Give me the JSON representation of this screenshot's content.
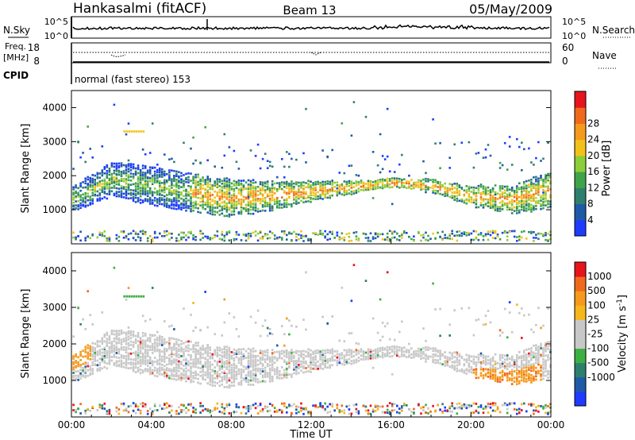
{
  "header": {
    "station": "Hankasalmi (fitACF)",
    "beam": "Beam 13",
    "date": "05/May/2009"
  },
  "noise_panel": {
    "left_label": "N.Sky",
    "left_ticks": [
      "10^5",
      "10^0"
    ],
    "right_label": "N.Search",
    "right_ticks": [
      "10^5",
      "10^0"
    ]
  },
  "freq_panel": {
    "left_label_1": "Freq.",
    "left_label_2": "[MHz]",
    "left_ticks": [
      "18",
      "8"
    ],
    "right_label": "Nave",
    "right_ticks": [
      "60",
      "0"
    ],
    "cpid_label": "CPID",
    "cpid_text": "normal (fast stereo) 153"
  },
  "x_axis": {
    "ticks": [
      "00:00",
      "04:00",
      "08:00",
      "12:00",
      "16:00",
      "20:00",
      "00:00"
    ],
    "label": "Time UT"
  },
  "colors": {
    "power": [
      "#1e3cff",
      "#1f5aa8",
      "#2f7f6e",
      "#3fa34a",
      "#8ccd3a",
      "#f3c21a",
      "#f59a1d",
      "#f06a1c",
      "#e8141c"
    ],
    "velocity": [
      "#e8141c",
      "#f06a1c",
      "#f59a1d",
      "#f5b71c",
      "#c8c8c8",
      "#c8c8c8",
      "#3cb043",
      "#2f7f6e",
      "#1f5aa8",
      "#1e3cff"
    ]
  },
  "chart_data": [
    {
      "type": "heatmap",
      "ylabel": "Slant Range [km]",
      "yticks": [
        "1000",
        "2000",
        "3000",
        "4000"
      ],
      "ylim": [
        0,
        4500
      ],
      "xlim_hours": [
        0,
        24
      ],
      "colorbar_label": "Power [dB]",
      "colorbar_ticks": [
        "4",
        "8",
        "12",
        "16",
        "20",
        "24",
        "28"
      ],
      "colorbar_range": [
        0,
        30
      ],
      "scatter_band_center_km": [
        [
          0,
          1300
        ],
        [
          2,
          1900
        ],
        [
          4,
          1700
        ],
        [
          6,
          1500
        ],
        [
          8,
          1350
        ],
        [
          10,
          1400
        ],
        [
          12,
          1550
        ],
        [
          14,
          1650
        ],
        [
          16,
          1800
        ],
        [
          18,
          1700
        ],
        [
          20,
          1400
        ],
        [
          22,
          1300
        ],
        [
          24,
          1600
        ]
      ]
    },
    {
      "type": "heatmap",
      "ylabel": "Slant Range [km]",
      "yticks": [
        "1000",
        "2000",
        "3000",
        "4000"
      ],
      "ylim": [
        0,
        4500
      ],
      "xlim_hours": [
        0,
        24
      ],
      "colorbar_label": "Velocity [m s^-1]",
      "colorbar_ticks": [
        "1000",
        "500",
        "100",
        "25",
        "-25",
        "-100",
        "-500",
        "-1000"
      ],
      "colorbar_range": [
        -1000,
        1000
      ]
    }
  ]
}
